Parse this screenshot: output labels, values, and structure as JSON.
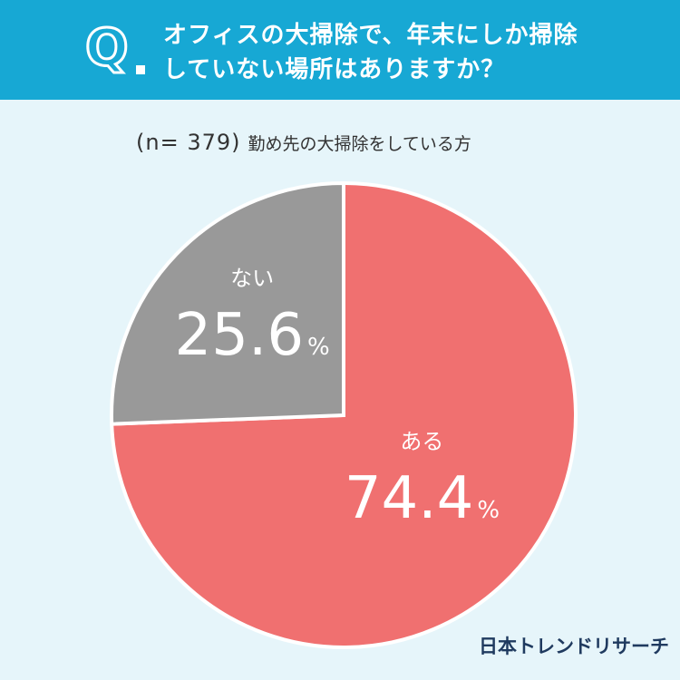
{
  "header": {
    "q_mark": "Q",
    "question_line1": "オフィスの大掃除で、年末にしか掃除",
    "question_line2": "していない場所はありますか？"
  },
  "subtitle": {
    "n": "(n= 379)",
    "description": "勤め先の大掃除をしている方"
  },
  "colors": {
    "header_bg": "#17a8d4",
    "background": "#e6f5fa",
    "aru": "#f07070",
    "nai": "#999999"
  },
  "chart_data": {
    "type": "pie",
    "title": "",
    "slices": [
      {
        "label": "ある",
        "value": 74.4,
        "display": "74.4",
        "unit": "%",
        "color": "#f07070"
      },
      {
        "label": "ない",
        "value": 25.6,
        "display": "25.6",
        "unit": "%",
        "color": "#999999"
      }
    ],
    "start": "top",
    "direction": "clockwise"
  },
  "footer": {
    "logo": "日本トレンドリサーチ"
  }
}
